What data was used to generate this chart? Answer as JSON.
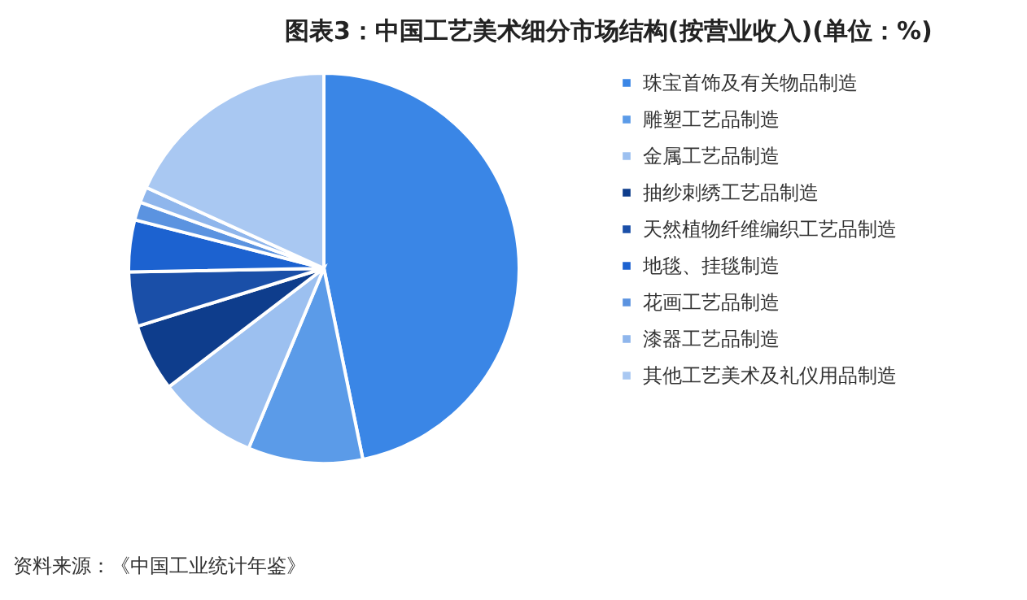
{
  "chart_data": {
    "type": "pie",
    "title": "图表3：中国工艺美术细分市场结构(按营业收入)(单位：%)",
    "categories": [
      "珠宝首饰及有关物品制造",
      "雕塑工艺品制造",
      "金属工艺品制造",
      "抽纱刺绣工艺品制造",
      "天然植物纤维编织工艺品制造",
      "地毯、挂毯制造",
      "花画工艺品制造",
      "漆器工艺品制造",
      "其他工艺美术及礼仪用品制造"
    ],
    "values": [
      46.8,
      9.5,
      8.3,
      5.6,
      4.5,
      4.3,
      1.5,
      1.3,
      18.2
    ],
    "colors": [
      "#3a86e6",
      "#5b9be8",
      "#9cc0f0",
      "#0e3d8c",
      "#1a4fa8",
      "#1c62d0",
      "#5b93e0",
      "#8fb6ec",
      "#a9c8f2"
    ],
    "legend": "right",
    "annotations": [
      "资料来源：《中国工业统计年鉴》"
    ]
  }
}
